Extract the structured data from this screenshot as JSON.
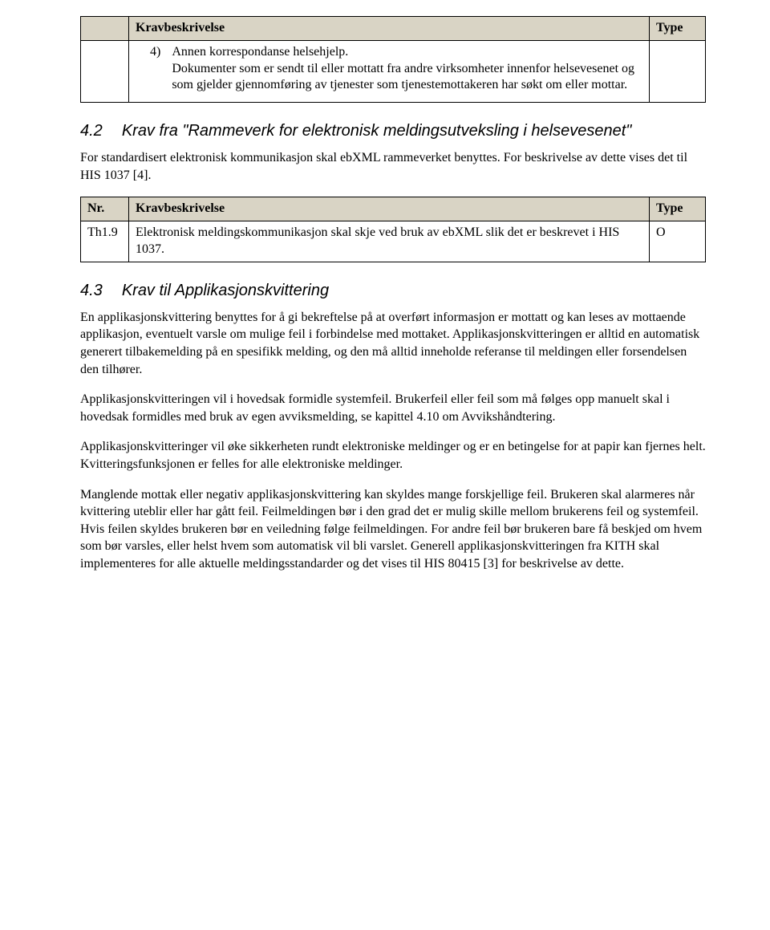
{
  "table1": {
    "headers": [
      "",
      "Kravbeskrivelse",
      "Type"
    ],
    "item_num": "4)",
    "item_label": "Annen korrespondanse helsehjelp.",
    "item_desc": "Dokumenter som er sendt til eller mottatt fra andre virksomheter innenfor helsevesenet og som gjelder gjennomføring av tjenester som tjenestemottakeren har søkt om eller mottar."
  },
  "section42": {
    "num": "4.2",
    "title": "Krav fra \"Rammeverk for elektronisk meldingsutveksling i helsevesenet\"",
    "intro": "For standardisert elektronisk kommunikasjon skal ebXML rammeverket benyttes. For beskrivelse av dette vises det til HIS 1037 [4]."
  },
  "table2": {
    "headers": [
      "Nr.",
      "Kravbeskrivelse",
      "Type"
    ],
    "row": {
      "nr": "Th1.9",
      "desc": "Elektronisk meldingskommunikasjon skal skje ved bruk av ebXML slik det er beskrevet i HIS 1037.",
      "type": "O"
    }
  },
  "section43": {
    "num": "4.3",
    "title": "Krav til Applikasjonskvittering",
    "p1": "En applikasjonskvittering benyttes for å gi bekreftelse på at overført informasjon er mottatt og kan leses av mottaende applikasjon, eventuelt varsle om mulige feil i forbindelse med mottaket. Applikasjonskvitteringen er alltid en automatisk generert tilbakemelding på en spesifikk melding, og den må alltid inneholde referanse til meldingen eller forsendelsen den tilhører.",
    "p2": "Applikasjonskvitteringen vil i hovedsak formidle systemfeil. Brukerfeil eller feil som må følges opp manuelt skal i hovedsak formidles med bruk av egen avviksmelding, se kapittel 4.10 om Avvikshåndtering.",
    "p3": "Applikasjonskvitteringer vil øke sikkerheten rundt elektroniske meldinger og er en betingelse for at papir kan fjernes helt. Kvitteringsfunksjonen er felles for alle elektroniske meldinger.",
    "p4": "Manglende mottak eller negativ applikasjonskvittering kan skyldes mange forskjellige feil. Brukeren skal alarmeres når kvittering uteblir eller har gått feil. Feilmeldingen bør i den grad det er mulig skille mellom brukerens feil og systemfeil. Hvis feilen skyldes brukeren bør en veiledning følge feilmeldingen. For andre feil bør brukeren bare få beskjed om hvem som bør varsles, eller helst hvem som automatisk vil bli varslet. Generell applikasjonskvitteringen fra KITH skal implementeres for alle aktuelle meldingsstandarder og det vises til HIS 80415 [3] for beskrivelse av dette."
  }
}
